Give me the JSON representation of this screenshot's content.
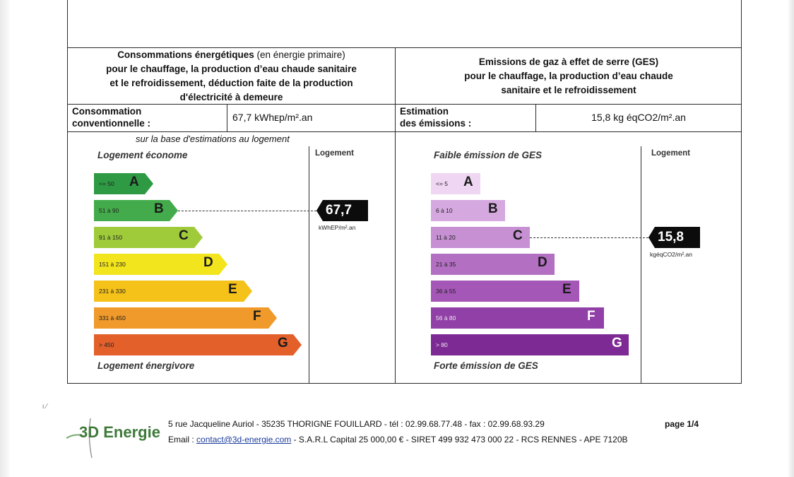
{
  "energy": {
    "title_bold_1": "Consommations énergétiques",
    "title_normal_1": " (en énergie primaire)",
    "title_line_2": "pour le chauffage, la production d’eau chaude sanitaire",
    "title_line_3": "et le refroidissement, déduction faite de la production",
    "title_line_4": "d'électricité à demeure",
    "label_line_1": "Consommation",
    "label_line_2": "conventionnelle :",
    "value": "67,7  kWhᴇp/m².an",
    "basis_note": "sur la base d'estimations au logement",
    "top_caption": "Logement économe",
    "bottom_caption": "Logement énergivore",
    "column_header": "Logement",
    "classes": [
      {
        "letter": "A",
        "range": "<= 50",
        "color": "#2e9a44"
      },
      {
        "letter": "B",
        "range": "51 à 90",
        "color": "#43ab4b"
      },
      {
        "letter": "C",
        "range": "91 à 150",
        "color": "#9fcb3a"
      },
      {
        "letter": "D",
        "range": "151 à 230",
        "color": "#f2e51e"
      },
      {
        "letter": "E",
        "range": "231 à 330",
        "color": "#f5c21a"
      },
      {
        "letter": "F",
        "range": "331 à 450",
        "color": "#ef9a2a"
      },
      {
        "letter": "G",
        "range": "> 450",
        "color": "#e3602a"
      }
    ],
    "current_class": "B",
    "badge_value": "67,7",
    "badge_unit": "kWhEP/m².an"
  },
  "ges": {
    "title_line_1": "Emissions de gaz à effet de serre (GES)",
    "title_line_2": "pour le chauffage, la production d’eau chaude",
    "title_line_3": "sanitaire et le refroidissement",
    "label_line_1": "Estimation",
    "label_line_2": "des émissions :",
    "value": "15,8 kg éqCO2/m².an",
    "top_caption": "Faible émission de GES",
    "bottom_caption": "Forte émission de GES",
    "column_header": "Logement",
    "classes": [
      {
        "letter": "A",
        "range": "<= 5",
        "color": "#efd6f2"
      },
      {
        "letter": "B",
        "range": "6 à 10",
        "color": "#d5a9df"
      },
      {
        "letter": "C",
        "range": "11 à 20",
        "color": "#c690d3"
      },
      {
        "letter": "D",
        "range": "21 à 35",
        "color": "#b36fc2"
      },
      {
        "letter": "E",
        "range": "36 à 55",
        "color": "#a457b6"
      },
      {
        "letter": "F",
        "range": "56 à 80",
        "color": "#9140a7"
      },
      {
        "letter": "G",
        "range": "> 80",
        "color": "#7d2a94"
      }
    ],
    "current_class": "C",
    "badge_value": "15,8",
    "badge_unit": "kgéqCO2/m².an"
  },
  "footer": {
    "logo": "3D Energie",
    "address_line": "5 rue Jacqueline Auriol - 35235 THORIGNE FOUILLARD - tél : 02.99.68.77.48 - fax : 02.99.68.93.29",
    "email_prefix": "Email : ",
    "email": "contact@3d-energie.com",
    "company_line": " - S.A.R.L Capital 25 000,00 € - SIRET 499 932 473 000 22 - RCS RENNES - APE 7120B",
    "page": "page 1/4"
  }
}
